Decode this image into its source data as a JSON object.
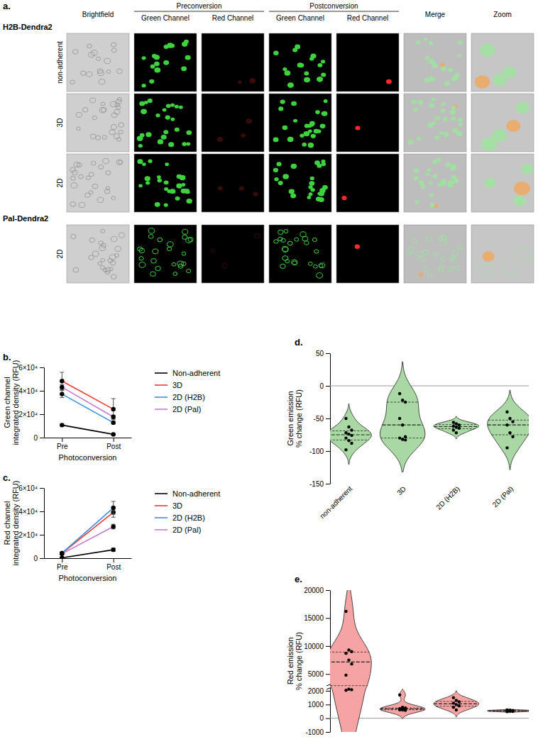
{
  "figure_a": {
    "label": "a.",
    "columns": [
      "Brightfield",
      "Green Channel",
      "Red Channel",
      "Green Channel",
      "Red Channel",
      "Merge",
      "Zoom"
    ],
    "groups": [
      "Preconversion",
      "Postconversion"
    ],
    "constructs": [
      {
        "name": "H2B-Dendra2",
        "rows": [
          "non-adherent",
          "3D",
          "2D"
        ]
      },
      {
        "name": "Pal-Dendra2",
        "rows": [
          "2D"
        ]
      }
    ]
  },
  "chart_data": [
    {
      "type": "line",
      "title": "b.",
      "x_label": "Photoconversion",
      "y_label": [
        "Green channel",
        "integrated density (RFU)"
      ],
      "categories": [
        "Pre",
        "Post"
      ],
      "ylim": [
        0,
        60000
      ],
      "yticks": [
        0,
        {
          "value": 20000,
          "label": "2×10⁴"
        },
        {
          "value": 40000,
          "label": "4×10⁴"
        },
        {
          "value": 60000,
          "label": "6×10⁴"
        }
      ],
      "legend": "right",
      "marker": "circle",
      "series": [
        {
          "name": "Non-adherent",
          "color": "#000000",
          "values": [
            10700,
            2800
          ],
          "errors": [
            1000,
            300
          ]
        },
        {
          "name": "3D",
          "color": "#ee3a32",
          "values": [
            48300,
            24300
          ],
          "errors": [
            7500,
            9000
          ]
        },
        {
          "name": "2D (H2B)",
          "color": "#3b8fde",
          "values": [
            37200,
            12800
          ],
          "errors": [
            3000,
            1000
          ]
        },
        {
          "name": "2D (Pal)",
          "color": "#c47ccf",
          "values": [
            43100,
            17700
          ],
          "errors": [
            2000,
            1500
          ]
        }
      ]
    },
    {
      "type": "line",
      "title": "c.",
      "x_label": "Photoconversion",
      "y_label": [
        "Red channel",
        "integrated density (RFU)"
      ],
      "categories": [
        "Pre",
        "Post"
      ],
      "ylim": [
        0,
        60000
      ],
      "yticks": [
        0,
        {
          "value": 20000,
          "label": "2×10⁴"
        },
        {
          "value": 40000,
          "label": "4×10⁴"
        },
        {
          "value": 60000,
          "label": "6×10⁴"
        }
      ],
      "legend": "right",
      "marker": "circle",
      "series": [
        {
          "name": "Non-adherent",
          "color": "#000000",
          "values": [
            300,
            7200
          ],
          "errors": [
            200,
            1500
          ]
        },
        {
          "name": "3D",
          "color": "#ee3a32",
          "values": [
            4200,
            39200
          ],
          "errors": [
            800,
            4200
          ]
        },
        {
          "name": "2D (H2B)",
          "color": "#3b8fde",
          "values": [
            4300,
            43000
          ],
          "errors": [
            900,
            5500
          ]
        },
        {
          "name": "2D (Pal)",
          "color": "#c47ccf",
          "values": [
            3800,
            27000
          ],
          "errors": [
            700,
            2000
          ]
        }
      ]
    },
    {
      "type": "violin",
      "title": "d.",
      "y_label": [
        "Green emission",
        "% change (RFU)"
      ],
      "categories": [
        "non-adherent",
        "3D",
        "2D (H2B)",
        "2D (Pal)"
      ],
      "values": [
        [
          -50,
          -63,
          -68,
          -72,
          -74,
          -76,
          -80,
          -84,
          -88,
          -98
        ],
        [
          -12,
          -22,
          -25,
          -50,
          -60,
          -78,
          -80,
          -82,
          -83
        ],
        [
          -56,
          -58,
          -60,
          -62,
          -63,
          -65,
          -68,
          -72
        ],
        [
          -40,
          -50,
          -55,
          -60,
          -72,
          -78,
          -95
        ]
      ],
      "color": "#a9d8a4",
      "marker": "circle",
      "ylim": [
        -150,
        50
      ],
      "yticks": [
        -150,
        -100,
        -50,
        0,
        50
      ],
      "hline": 0
    },
    {
      "type": "violin",
      "title": "e.",
      "y_label": [
        "Red emission",
        "% change (RFU)"
      ],
      "categories": [
        null,
        null,
        null,
        null
      ],
      "values": [
        [
          16200,
          9300,
          9000,
          8700,
          7500,
          6800,
          4800,
          2300,
          2200,
          2100
        ],
        [
          1700,
          800,
          750,
          700,
          680,
          650,
          620,
          600,
          580
        ],
        [
          1500,
          1300,
          1200,
          1100,
          1000,
          900,
          800,
          600
        ],
        [
          600,
          580,
          560,
          540,
          520,
          500,
          480
        ]
      ],
      "color": "#f5a3a3",
      "marker": "circle",
      "ylim": [
        -1000,
        20000
      ],
      "yticks": [
        -1000,
        0,
        1000,
        2000,
        5000,
        10000,
        15000,
        20000
      ],
      "hline": 0
    }
  ]
}
